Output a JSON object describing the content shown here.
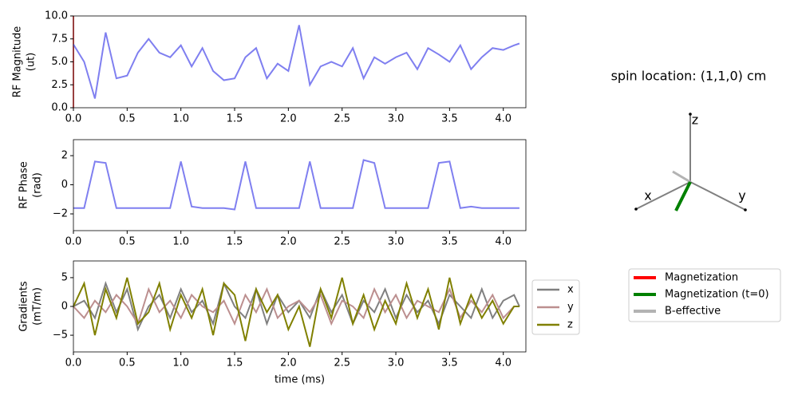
{
  "chart_data": [
    {
      "type": "line",
      "ylabel": [
        "RF Magnitude",
        "(ut)"
      ],
      "x": [
        0,
        0.1,
        0.2,
        0.3,
        0.4,
        0.5,
        0.6,
        0.7,
        0.8,
        0.9,
        1.0,
        1.1,
        1.2,
        1.3,
        1.4,
        1.5,
        1.6,
        1.7,
        1.8,
        1.9,
        2.0,
        2.1,
        2.2,
        2.3,
        2.4,
        2.5,
        2.6,
        2.7,
        2.8,
        2.9,
        3.0,
        3.1,
        3.2,
        3.3,
        3.4,
        3.5,
        3.6,
        3.7,
        3.8,
        3.9,
        4.0,
        4.1,
        4.15
      ],
      "series": [
        {
          "color": "#7f7ff0",
          "values": [
            6.9,
            5.0,
            1.0,
            8.2,
            3.2,
            3.5,
            6.0,
            7.5,
            6.0,
            5.5,
            6.8,
            4.5,
            6.5,
            4.0,
            3.0,
            3.2,
            5.5,
            6.5,
            3.2,
            4.8,
            4.0,
            9.0,
            2.5,
            4.5,
            5.0,
            4.5,
            6.5,
            3.2,
            5.5,
            4.8,
            5.5,
            6.0,
            4.2,
            6.5,
            5.8,
            5.0,
            6.8,
            4.2,
            5.5,
            6.5,
            6.3,
            6.8,
            7.0
          ]
        }
      ],
      "xlim": [
        0,
        4.21
      ],
      "ylim": [
        0,
        10
      ],
      "xticks": [
        {
          "value": 0,
          "label": "0.0"
        },
        {
          "value": 0.5,
          "label": "0.5"
        },
        {
          "value": 1,
          "label": "1.0"
        },
        {
          "value": 1.5,
          "label": "1.5"
        },
        {
          "value": 2,
          "label": "2.0"
        },
        {
          "value": 2.5,
          "label": "2.5"
        },
        {
          "value": 3,
          "label": "3.0"
        },
        {
          "value": 3.5,
          "label": "3.5"
        },
        {
          "value": 4,
          "label": "4.0"
        }
      ],
      "yticks": [
        {
          "value": 0,
          "label": "0.0"
        },
        {
          "value": 2.5,
          "label": "2.5"
        },
        {
          "value": 5,
          "label": "5.0"
        },
        {
          "value": 7.5,
          "label": "7.5"
        },
        {
          "value": 10,
          "label": "10.0"
        }
      ]
    },
    {
      "type": "line",
      "ylabel": [
        "RF Phase",
        "(rad)"
      ],
      "x": [
        0,
        0.1,
        0.2,
        0.3,
        0.4,
        0.5,
        0.6,
        0.7,
        0.8,
        0.9,
        1.0,
        1.1,
        1.2,
        1.3,
        1.4,
        1.5,
        1.6,
        1.7,
        1.8,
        1.9,
        2.0,
        2.1,
        2.2,
        2.3,
        2.4,
        2.5,
        2.6,
        2.7,
        2.8,
        2.9,
        3.0,
        3.1,
        3.2,
        3.3,
        3.4,
        3.5,
        3.6,
        3.7,
        3.8,
        3.9,
        4.0,
        4.1,
        4.15
      ],
      "series": [
        {
          "color": "#7f7ff0",
          "values": [
            -1.6,
            -1.6,
            1.6,
            1.5,
            -1.6,
            -1.6,
            -1.6,
            -1.6,
            -1.6,
            -1.6,
            1.6,
            -1.5,
            -1.6,
            -1.6,
            -1.6,
            -1.7,
            1.6,
            -1.6,
            -1.6,
            -1.6,
            -1.6,
            -1.6,
            1.6,
            -1.6,
            -1.6,
            -1.6,
            -1.6,
            1.7,
            1.5,
            -1.6,
            -1.6,
            -1.6,
            -1.6,
            -1.6,
            1.5,
            1.6,
            -1.6,
            -1.5,
            -1.6,
            -1.6,
            -1.6,
            -1.6,
            -1.6
          ]
        }
      ],
      "xlim": [
        0,
        4.21
      ],
      "ylim": [
        -3.15,
        3.1
      ],
      "xticks": [
        {
          "value": 0,
          "label": "0.0"
        },
        {
          "value": 0.5,
          "label": "0.5"
        },
        {
          "value": 1,
          "label": "1.0"
        },
        {
          "value": 1.5,
          "label": "1.5"
        },
        {
          "value": 2,
          "label": "2.0"
        },
        {
          "value": 2.5,
          "label": "2.5"
        },
        {
          "value": 3,
          "label": "3.0"
        },
        {
          "value": 3.5,
          "label": "3.5"
        },
        {
          "value": 4,
          "label": "4.0"
        }
      ],
      "yticks": [
        {
          "value": -2,
          "label": "−2"
        },
        0,
        2
      ]
    },
    {
      "type": "line",
      "ylabel": [
        "Gradients",
        "(mT/m)"
      ],
      "xlabel": "time (ms)",
      "x": [
        0,
        0.1,
        0.2,
        0.3,
        0.4,
        0.5,
        0.6,
        0.7,
        0.8,
        0.9,
        1.0,
        1.1,
        1.2,
        1.3,
        1.4,
        1.5,
        1.6,
        1.7,
        1.8,
        1.9,
        2.0,
        2.1,
        2.2,
        2.3,
        2.4,
        2.5,
        2.6,
        2.7,
        2.8,
        2.9,
        3.0,
        3.1,
        3.2,
        3.3,
        3.4,
        3.5,
        3.6,
        3.7,
        3.8,
        3.9,
        4.0,
        4.1,
        4.15
      ],
      "series": [
        {
          "name": "x",
          "color": "#808080",
          "values": [
            0,
            1,
            -2,
            4,
            -1,
            3,
            -4,
            0,
            2,
            -2,
            3,
            -1,
            1,
            -3,
            4,
            0,
            -2,
            3,
            -3,
            2,
            -1,
            1,
            -2,
            3,
            -1,
            2,
            -3,
            1,
            -1,
            3,
            -2,
            2,
            -1,
            1,
            -3,
            2,
            0,
            -2,
            3,
            -2,
            1,
            2,
            0
          ]
        },
        {
          "name": "y",
          "color": "#bc8f8f",
          "values": [
            0,
            -2,
            1,
            -1,
            2,
            0,
            -3,
            3,
            -1,
            1,
            -2,
            2,
            0,
            -1,
            1,
            -3,
            2,
            -1,
            3,
            -2,
            0,
            1,
            -1,
            2,
            -3,
            1,
            0,
            -2,
            3,
            -1,
            2,
            -2,
            1,
            0,
            -1,
            3,
            -2,
            1,
            -1,
            2,
            -2,
            0,
            0
          ]
        },
        {
          "name": "z",
          "color": "#808000",
          "values": [
            0,
            4,
            -5,
            3,
            -2,
            5,
            -3,
            -1,
            4,
            -4,
            2,
            -2,
            3,
            -5,
            4,
            2,
            -6,
            3,
            -1,
            2,
            -4,
            0,
            -7,
            3,
            -2,
            5,
            -3,
            2,
            -4,
            1,
            -3,
            4,
            -2,
            3,
            -4,
            5,
            -3,
            2,
            -2,
            1,
            -3,
            0,
            0
          ]
        }
      ],
      "xlim": [
        0,
        4.21
      ],
      "ylim": [
        -7.9,
        7.9
      ],
      "xticks": [
        {
          "value": 0,
          "label": "0.0"
        },
        {
          "value": 0.5,
          "label": "0.5"
        },
        {
          "value": 1,
          "label": "1.0"
        },
        {
          "value": 1.5,
          "label": "1.5"
        },
        {
          "value": 2,
          "label": "2.0"
        },
        {
          "value": 2.5,
          "label": "2.5"
        },
        {
          "value": 3,
          "label": "3.0"
        },
        {
          "value": 3.5,
          "label": "3.5"
        },
        {
          "value": 4,
          "label": "4.0"
        }
      ],
      "yticks": [
        {
          "value": -5,
          "label": "−5"
        },
        0,
        5
      ],
      "legend": "right"
    },
    {
      "type": "vector3d",
      "title": "spin location: (1,1,0) cm",
      "axis_labels": [
        "x",
        "y",
        "z"
      ],
      "series": [
        {
          "name": "Magnetization",
          "color": "#ff0000"
        },
        {
          "name": "Magnetization (t=0)",
          "color": "#008000"
        },
        {
          "name": "B-effective",
          "color": "#b3b3b3"
        }
      ]
    }
  ]
}
